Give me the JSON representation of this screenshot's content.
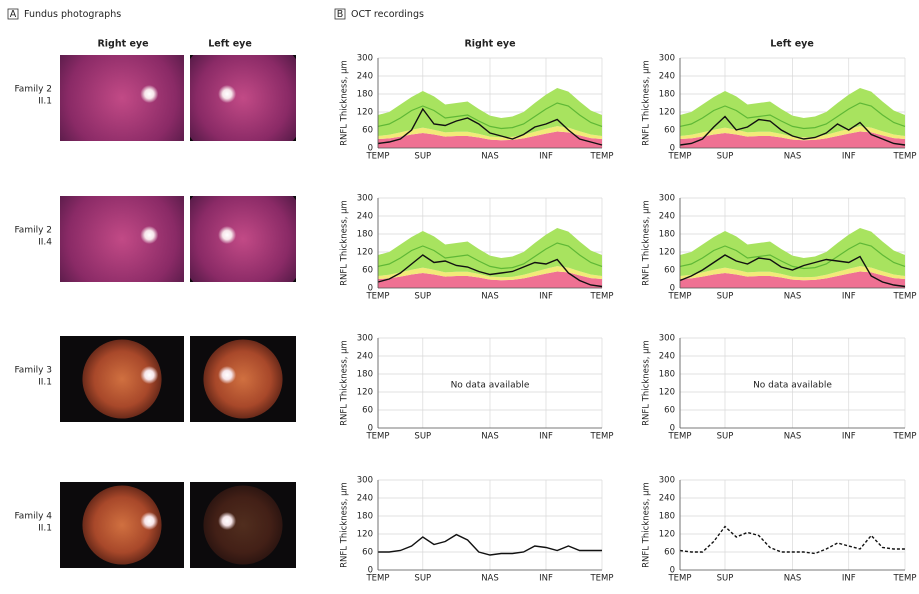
{
  "panel_a": {
    "label": "A",
    "title": "Fundus photographs",
    "columns": [
      "Right eye",
      "Left eye"
    ],
    "rows": [
      {
        "family": "Family 2",
        "id": "II.1"
      },
      {
        "family": "Family 2",
        "id": "II.4"
      },
      {
        "family": "Family 3",
        "id": "II.1"
      },
      {
        "family": "Family 4",
        "id": "II.1"
      }
    ]
  },
  "panel_b": {
    "label": "B",
    "title": "OCT recordings",
    "columns": [
      "Right eye",
      "Left eye"
    ]
  },
  "normative": {
    "x": [
      0,
      5,
      10,
      15,
      20,
      25,
      30,
      35,
      40,
      45,
      50,
      55,
      60,
      65,
      70,
      75,
      80,
      85,
      90,
      95,
      100
    ],
    "bands": [
      {
        "color": "#ef7193",
        "values": [
          30,
          32,
          38,
          45,
          50,
          45,
          38,
          40,
          40,
          35,
          28,
          26,
          27,
          32,
          40,
          48,
          55,
          52,
          42,
          33,
          30
        ]
      },
      {
        "color": "#f2ea78",
        "values": [
          10,
          12,
          14,
          16,
          18,
          16,
          14,
          14,
          14,
          12,
          10,
          10,
          10,
          12,
          14,
          16,
          18,
          16,
          14,
          12,
          10
        ]
      },
      {
        "color": "#a8e35f",
        "values": [
          70,
          76,
          93,
          109,
          122,
          111,
          93,
          96,
          101,
          83,
          70,
          64,
          68,
          76,
          96,
          114,
          127,
          120,
          99,
          80,
          70
        ]
      }
    ],
    "mean": {
      "color": "#5fb836",
      "values": [
        72,
        80,
        100,
        125,
        140,
        125,
        100,
        105,
        110,
        90,
        72,
        65,
        68,
        80,
        105,
        130,
        150,
        140,
        110,
        85,
        72
      ]
    }
  },
  "chart_data": [
    {
      "type": "line",
      "ylabel": "RNFL Thickness, µm",
      "ylim": [
        0,
        300
      ],
      "yticks": [
        0,
        60,
        120,
        180,
        240,
        300
      ],
      "xlim": [
        0,
        100
      ],
      "xticks": [
        {
          "value": 0,
          "label": "TEMP"
        },
        {
          "value": 20,
          "label": "SUP"
        },
        {
          "value": 50,
          "label": "NAS"
        },
        {
          "value": 75,
          "label": "INF"
        },
        {
          "value": 100,
          "label": "TEMP"
        }
      ],
      "grid": true,
      "normative": true,
      "x": [
        0,
        5,
        10,
        15,
        20,
        25,
        30,
        35,
        40,
        45,
        50,
        55,
        60,
        65,
        70,
        75,
        80,
        85,
        90,
        95,
        100
      ],
      "series": [
        {
          "color": "#111111",
          "dash": false,
          "values": [
            15,
            20,
            30,
            60,
            130,
            80,
            75,
            90,
            100,
            80,
            50,
            40,
            30,
            45,
            70,
            80,
            95,
            60,
            30,
            20,
            10
          ]
        }
      ]
    },
    {
      "type": "line",
      "ylabel": "RNFL Thickness, µm",
      "ylim": [
        0,
        300
      ],
      "yticks": [
        0,
        60,
        120,
        180,
        240,
        300
      ],
      "xlim": [
        0,
        100
      ],
      "xticks": [
        {
          "value": 0,
          "label": "TEMP"
        },
        {
          "value": 20,
          "label": "SUP"
        },
        {
          "value": 50,
          "label": "NAS"
        },
        {
          "value": 75,
          "label": "INF"
        },
        {
          "value": 100,
          "label": "TEMP"
        }
      ],
      "grid": true,
      "normative": true,
      "x": [
        0,
        5,
        10,
        15,
        20,
        25,
        30,
        35,
        40,
        45,
        50,
        55,
        60,
        65,
        70,
        75,
        80,
        85,
        90,
        95,
        100
      ],
      "series": [
        {
          "color": "#111111",
          "dash": false,
          "values": [
            10,
            15,
            30,
            70,
            105,
            60,
            70,
            95,
            90,
            60,
            40,
            30,
            35,
            50,
            80,
            60,
            85,
            45,
            30,
            15,
            10
          ]
        }
      ]
    },
    {
      "type": "line",
      "ylabel": "RNFL Thickness, µm",
      "ylim": [
        0,
        300
      ],
      "yticks": [
        0,
        60,
        120,
        180,
        240,
        300
      ],
      "xlim": [
        0,
        100
      ],
      "xticks": [
        {
          "value": 0,
          "label": "TEMP"
        },
        {
          "value": 20,
          "label": "SUP"
        },
        {
          "value": 50,
          "label": "NAS"
        },
        {
          "value": 75,
          "label": "INF"
        },
        {
          "value": 100,
          "label": "TEMP"
        }
      ],
      "grid": true,
      "normative": true,
      "x": [
        0,
        5,
        10,
        15,
        20,
        25,
        30,
        35,
        40,
        45,
        50,
        55,
        60,
        65,
        70,
        75,
        80,
        85,
        90,
        95,
        100
      ],
      "series": [
        {
          "color": "#111111",
          "dash": false,
          "values": [
            20,
            30,
            50,
            80,
            110,
            85,
            90,
            75,
            70,
            55,
            45,
            50,
            55,
            70,
            85,
            80,
            95,
            50,
            25,
            10,
            5
          ]
        }
      ]
    },
    {
      "type": "line",
      "ylabel": "RNFL Thickness, µm",
      "ylim": [
        0,
        300
      ],
      "yticks": [
        0,
        60,
        120,
        180,
        240,
        300
      ],
      "xlim": [
        0,
        100
      ],
      "xticks": [
        {
          "value": 0,
          "label": "TEMP"
        },
        {
          "value": 20,
          "label": "SUP"
        },
        {
          "value": 50,
          "label": "NAS"
        },
        {
          "value": 75,
          "label": "INF"
        },
        {
          "value": 100,
          "label": "TEMP"
        }
      ],
      "grid": true,
      "normative": true,
      "x": [
        0,
        5,
        10,
        15,
        20,
        25,
        30,
        35,
        40,
        45,
        50,
        55,
        60,
        65,
        70,
        75,
        80,
        85,
        90,
        95,
        100
      ],
      "series": [
        {
          "color": "#111111",
          "dash": false,
          "values": [
            25,
            40,
            60,
            85,
            110,
            90,
            80,
            100,
            95,
            70,
            60,
            75,
            85,
            95,
            90,
            85,
            105,
            40,
            20,
            10,
            5
          ]
        }
      ]
    },
    {
      "type": "line",
      "ylabel": "RNFL Thickness, µm",
      "ylim": [
        0,
        300
      ],
      "yticks": [
        0,
        60,
        120,
        180,
        240,
        300
      ],
      "xlim": [
        0,
        100
      ],
      "xticks": [
        {
          "value": 0,
          "label": "TEMP"
        },
        {
          "value": 20,
          "label": "SUP"
        },
        {
          "value": 50,
          "label": "NAS"
        },
        {
          "value": 75,
          "label": "INF"
        },
        {
          "value": 100,
          "label": "TEMP"
        }
      ],
      "grid": true,
      "normative": false,
      "annotation": "No data available",
      "series": []
    },
    {
      "type": "line",
      "ylabel": "RNFL Thickness, µm",
      "ylim": [
        0,
        300
      ],
      "yticks": [
        0,
        60,
        120,
        180,
        240,
        300
      ],
      "xlim": [
        0,
        100
      ],
      "xticks": [
        {
          "value": 0,
          "label": "TEMP"
        },
        {
          "value": 20,
          "label": "SUP"
        },
        {
          "value": 50,
          "label": "NAS"
        },
        {
          "value": 75,
          "label": "INF"
        },
        {
          "value": 100,
          "label": "TEMP"
        }
      ],
      "grid": true,
      "normative": false,
      "annotation": "No data available",
      "series": []
    },
    {
      "type": "line",
      "ylabel": "RNFL Thickness, µm",
      "ylim": [
        0,
        300
      ],
      "yticks": [
        0,
        60,
        120,
        180,
        240,
        300
      ],
      "xlim": [
        0,
        100
      ],
      "xticks": [
        {
          "value": 0,
          "label": "TEMP"
        },
        {
          "value": 20,
          "label": "SUP"
        },
        {
          "value": 50,
          "label": "NAS"
        },
        {
          "value": 75,
          "label": "INF"
        },
        {
          "value": 100,
          "label": "TEMP"
        }
      ],
      "grid": true,
      "normative": false,
      "x": [
        0,
        5,
        10,
        15,
        20,
        25,
        30,
        35,
        40,
        45,
        50,
        55,
        60,
        65,
        70,
        75,
        80,
        85,
        90,
        95,
        100
      ],
      "series": [
        {
          "color": "#111111",
          "dash": false,
          "values": [
            60,
            60,
            65,
            80,
            110,
            85,
            95,
            118,
            100,
            60,
            50,
            55,
            55,
            60,
            80,
            75,
            65,
            80,
            65,
            65,
            65
          ]
        }
      ]
    },
    {
      "type": "line",
      "ylabel": "RNFL Thickness, µm",
      "ylim": [
        0,
        300
      ],
      "yticks": [
        0,
        60,
        120,
        180,
        240,
        300
      ],
      "xlim": [
        0,
        100
      ],
      "xticks": [
        {
          "value": 0,
          "label": "TEMP"
        },
        {
          "value": 20,
          "label": "SUP"
        },
        {
          "value": 50,
          "label": "NAS"
        },
        {
          "value": 75,
          "label": "INF"
        },
        {
          "value": 100,
          "label": "TEMP"
        }
      ],
      "grid": true,
      "normative": false,
      "x": [
        0,
        5,
        10,
        15,
        20,
        25,
        30,
        35,
        40,
        45,
        50,
        55,
        60,
        65,
        70,
        75,
        80,
        85,
        90,
        95,
        100
      ],
      "series": [
        {
          "color": "#111111",
          "dash": true,
          "values": [
            65,
            60,
            60,
            95,
            145,
            110,
            125,
            115,
            75,
            60,
            60,
            60,
            55,
            70,
            90,
            80,
            70,
            115,
            75,
            70,
            70
          ]
        }
      ]
    }
  ]
}
